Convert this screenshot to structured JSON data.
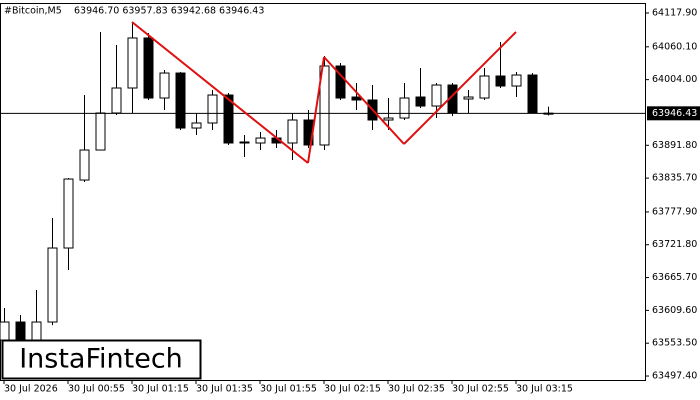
{
  "chart_data": {
    "type": "candlestick",
    "title": "#Bitcoin,M5",
    "subtitle": "63946.70 63957.83 63942.68 63946.43",
    "watermark": "InstaFintech",
    "categories": [
      "30 Jul 2026",
      null,
      null,
      null,
      "30 Jul 00:55",
      null,
      null,
      null,
      "30 Jul 01:15",
      null,
      null,
      null,
      "30 Jul 01:35",
      null,
      null,
      null,
      "30 Jul 01:55",
      null,
      null,
      null,
      "30 Jul 02:15",
      null,
      null,
      null,
      "30 Jul 02:35",
      null,
      null,
      null,
      "30 Jul 02:55",
      null,
      null,
      null,
      "30 Jul 03:15",
      null,
      null
    ],
    "open": [
      63558.9,
      63589.7,
      63558.9,
      63589.7,
      63716.2,
      63832.4,
      63883.7,
      63947.0,
      63989.7,
      64075.2,
      63972.6,
      64015.3,
      63921.3,
      63929.9,
      63977.7,
      63895.7,
      63895.7,
      63904.2,
      63895.7,
      63935.0,
      63892.3,
      64027.3,
      63974.3,
      63969.2,
      63935.0,
      63938.4,
      63974.3,
      63958.9,
      63994.8,
      63970.9,
      63972.6,
      64010.2,
      63993.1,
      64011.9,
      63946.7
    ],
    "high": [
      63613.6,
      63601.6,
      63644.4,
      63767.5,
      63835.9,
      63977.7,
      64085.4,
      64063.2,
      64102.5,
      64083.7,
      64020.5,
      64017.0,
      63947.0,
      63986.3,
      63981.2,
      63909.3,
      63914.5,
      63917.9,
      63947.0,
      63952.1,
      64044.4,
      64032.4,
      63998.2,
      63994.8,
      63972.6,
      63998.2,
      64023.9,
      63998.2,
      63998.2,
      63986.3,
      64023.9,
      64068.3,
      64017.0,
      64015.3,
      63957.83
    ],
    "low": [
      63550.4,
      63550.4,
      63550.4,
      63584.5,
      63678.6,
      63829.0,
      63883.7,
      63943.5,
      63947.0,
      63969.2,
      63952.1,
      63917.9,
      63909.3,
      63917.9,
      63892.3,
      63871.7,
      63883.7,
      63887.1,
      63866.6,
      63887.1,
      63883.7,
      63969.2,
      63952.1,
      63917.9,
      63917.9,
      63935.0,
      63955.5,
      63938.4,
      63941.8,
      63947.0,
      63969.2,
      63989.7,
      63974.3,
      63947.0,
      63942.68
    ],
    "close": [
      63589.7,
      63558.9,
      63589.7,
      63716.2,
      63834.1,
      63883.7,
      63947.0,
      63989.7,
      64075.2,
      63972.6,
      64015.3,
      63921.3,
      63929.9,
      63977.7,
      63895.7,
      63897.4,
      63904.2,
      63895.7,
      63935.0,
      63892.3,
      64027.3,
      63972.6,
      63969.2,
      63935.0,
      63938.4,
      63972.6,
      63958.9,
      63994.8,
      63947.0,
      63974.3,
      64010.2,
      63993.1,
      64011.9,
      63947.0,
      63946.43
    ],
    "up_color": "#ffffff",
    "down_color": "#000000",
    "pattern": {
      "color": "#e01010",
      "values": [
        null,
        null,
        null,
        null,
        null,
        null,
        null,
        null,
        64102.5,
        null,
        null,
        null,
        null,
        null,
        null,
        null,
        null,
        null,
        null,
        63861.5,
        64042.7,
        null,
        null,
        null,
        null,
        63894.0,
        null,
        null,
        null,
        null,
        null,
        null,
        64085.4,
        null,
        null
      ]
    },
    "last_price": 63946.43,
    "ylim": [
      63490.6,
      64135.0
    ],
    "yticks": [
      {
        "value": 64117.9,
        "label": "64117.90"
      },
      {
        "value": 64060.1,
        "label": "64060.10"
      },
      {
        "value": 64004.0,
        "label": "64004.00"
      },
      {
        "value": 63891.8,
        "label": "63891.80"
      },
      {
        "value": 63835.7,
        "label": "63835.70"
      },
      {
        "value": 63777.9,
        "label": "63777.90"
      },
      {
        "value": 63721.8,
        "label": "63721.80"
      },
      {
        "value": 63665.7,
        "label": "63665.70"
      },
      {
        "value": 63609.6,
        "label": "63609.60"
      },
      {
        "value": 63553.5,
        "label": "63553.50"
      },
      {
        "value": 63497.4,
        "label": "63497.40"
      }
    ]
  }
}
